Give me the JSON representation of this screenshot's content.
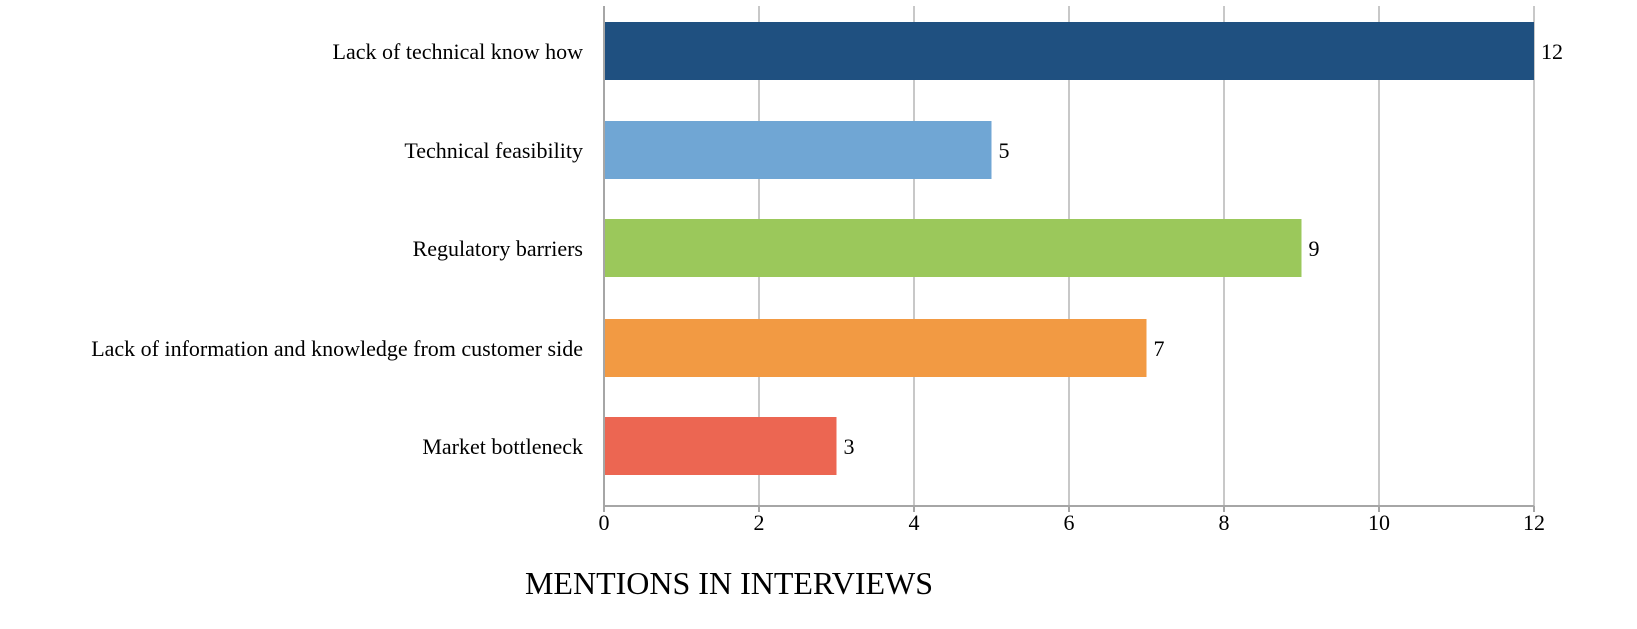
{
  "chart_data": {
    "type": "bar",
    "orientation": "horizontal",
    "categories": [
      "Lack of technical know how",
      "Technical feasibility",
      "Regulatory barriers",
      "Lack of information and knowledge from customer side",
      "Market bottleneck"
    ],
    "values": [
      12,
      5,
      9,
      7,
      3
    ],
    "colors": [
      "#1f5080",
      "#70a6d4",
      "#9bc85b",
      "#f29a43",
      "#ec6652"
    ],
    "xlabel": "MENTIONS IN INTERVIEWS",
    "ylabel": "",
    "title": "",
    "xlim": [
      0,
      12
    ],
    "xticks": [
      0,
      2,
      4,
      6,
      8,
      10,
      12
    ],
    "grid": true,
    "legend": "none",
    "data_labels": true
  }
}
